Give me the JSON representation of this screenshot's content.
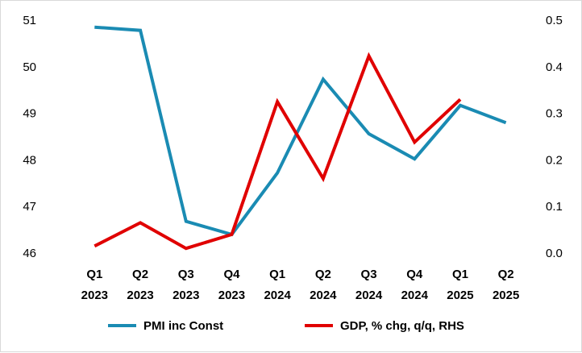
{
  "chart_data": {
    "type": "line",
    "title": "",
    "xlabel": "",
    "ylabel": "",
    "categories": [
      [
        "Q1",
        "2023"
      ],
      [
        "Q2",
        "2023"
      ],
      [
        "Q3",
        "2023"
      ],
      [
        "Q4",
        "2023"
      ],
      [
        "Q1",
        "2024"
      ],
      [
        "Q2",
        "2024"
      ],
      [
        "Q3",
        "2024"
      ],
      [
        "Q4",
        "2024"
      ],
      [
        "Q1",
        "2025"
      ],
      [
        "Q2",
        "2025"
      ]
    ],
    "ylim": [
      46,
      51
    ],
    "yticks": [
      "46",
      "47",
      "48",
      "49",
      "50",
      "51"
    ],
    "y2lim": [
      0.0,
      0.5
    ],
    "y2ticks": [
      "0.0",
      "0.1",
      "0.2",
      "0.3",
      "0.4",
      "0.5"
    ],
    "grid": false,
    "legend": "bottom",
    "series": [
      {
        "name": "PMI inc Const",
        "axis": "left",
        "color": "#1a8bb3",
        "values": [
          50.85,
          50.78,
          46.68,
          46.4,
          47.72,
          49.73,
          48.56,
          48.02,
          49.17,
          48.8
        ]
      },
      {
        "name": "GDP, % chg, q/q, RHS",
        "axis": "right",
        "color": "#e00000",
        "values": [
          0.015,
          0.065,
          0.01,
          0.04,
          0.325,
          0.16,
          0.423,
          0.238,
          0.33,
          null
        ]
      }
    ]
  }
}
